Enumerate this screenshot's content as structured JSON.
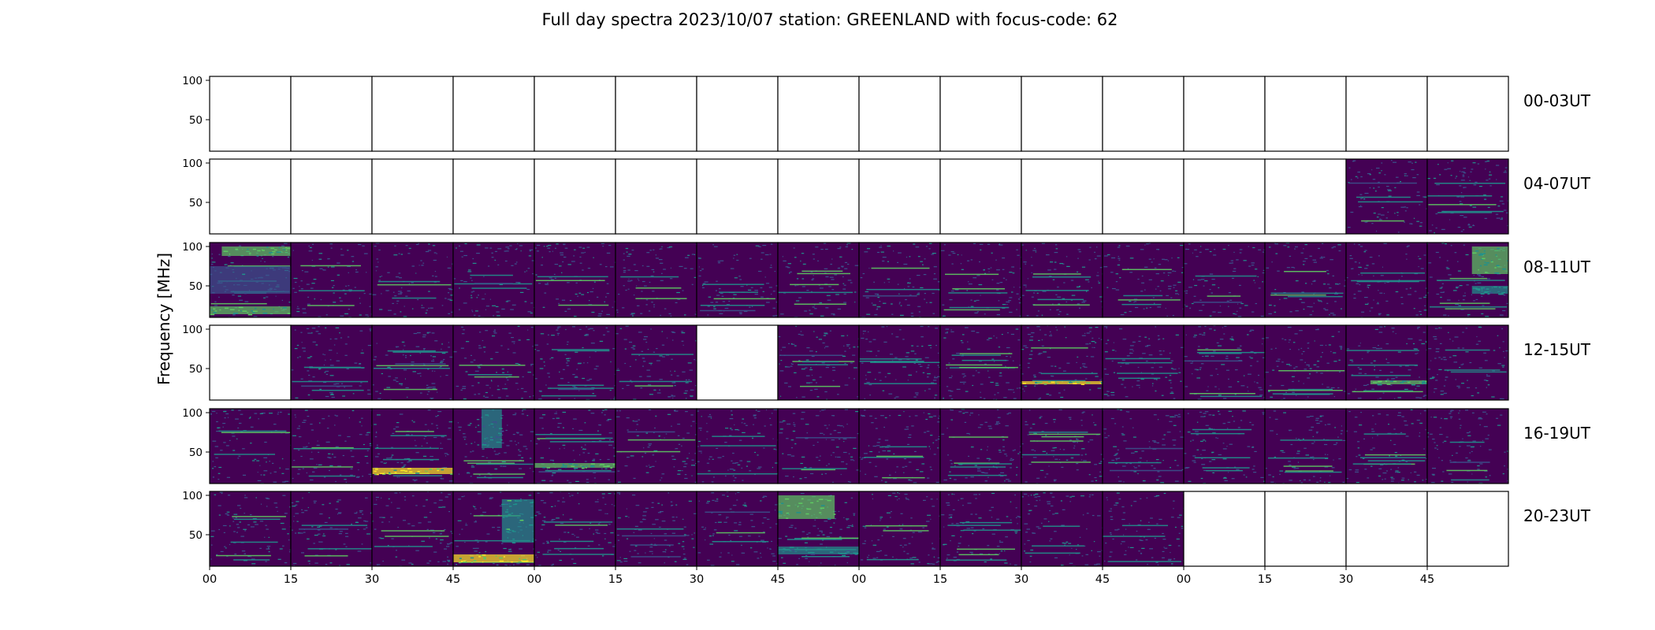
{
  "chart_data": {
    "type": "heatmap",
    "title": "Full day spectra 2023/10/07 station: GREENLAND with focus-code: 62",
    "ylabel": "Frequency [MHz]",
    "ylim": [
      10,
      105
    ],
    "yticks": [
      50,
      100
    ],
    "row_labels": [
      "00-03UT",
      "04-07UT",
      "08-11UT",
      "12-15UT",
      "16-19UT",
      "20-23UT"
    ],
    "x_tick_labels": [
      "00",
      "15",
      "30",
      "45",
      "00",
      "15",
      "30",
      "45",
      "00",
      "15",
      "30",
      "45",
      "00",
      "15",
      "30",
      "45"
    ],
    "panels_per_row": 16,
    "panel_minutes": 15,
    "colormap": [
      "#440154",
      "#3b528b",
      "#21918c",
      "#5ec962",
      "#fde725"
    ],
    "availability": [
      [
        0,
        0,
        0,
        0,
        0,
        0,
        0,
        0,
        0,
        0,
        0,
        0,
        0,
        0,
        0,
        0
      ],
      [
        0,
        0,
        0,
        0,
        0,
        0,
        0,
        0,
        0,
        0,
        0,
        0,
        0,
        0,
        1,
        1
      ],
      [
        1,
        1,
        1,
        1,
        1,
        1,
        1,
        1,
        1,
        1,
        1,
        1,
        1,
        1,
        1,
        1
      ],
      [
        0,
        1,
        1,
        1,
        1,
        1,
        0,
        1,
        1,
        1,
        1,
        1,
        1,
        1,
        1,
        1
      ],
      [
        1,
        1,
        1,
        1,
        1,
        1,
        1,
        1,
        1,
        1,
        1,
        1,
        1,
        1,
        1,
        1
      ],
      [
        1,
        1,
        1,
        1,
        1,
        1,
        1,
        1,
        1,
        1,
        1,
        1,
        0,
        0,
        0,
        0
      ]
    ],
    "features": [
      {
        "row": 2,
        "panel": 0,
        "f0": 88,
        "f1": 100,
        "t0": 0.15,
        "t1": 1.0,
        "level": 0.8
      },
      {
        "row": 2,
        "panel": 0,
        "f0": 14,
        "f1": 24,
        "t0": 0.0,
        "t1": 1.0,
        "level": 0.75
      },
      {
        "row": 2,
        "panel": 0,
        "f0": 40,
        "f1": 75,
        "t0": 0.0,
        "t1": 1.0,
        "level": 0.35
      },
      {
        "row": 2,
        "panel": 15,
        "f0": 65,
        "f1": 100,
        "t0": 0.55,
        "t1": 1.0,
        "level": 0.7
      },
      {
        "row": 2,
        "panel": 15,
        "f0": 40,
        "f1": 50,
        "t0": 0.55,
        "t1": 1.0,
        "level": 0.55
      },
      {
        "row": 3,
        "panel": 6,
        "f0": 20,
        "f1": 26,
        "t0": 0.0,
        "t1": 1.0,
        "level": 0.0
      },
      {
        "row": 3,
        "panel": 10,
        "f0": 30,
        "f1": 34,
        "t0": 0.0,
        "t1": 1.0,
        "level": 0.9
      },
      {
        "row": 3,
        "panel": 14,
        "f0": 30,
        "f1": 35,
        "t0": 0.3,
        "t1": 1.0,
        "level": 0.7
      },
      {
        "row": 4,
        "panel": 2,
        "f0": 22,
        "f1": 30,
        "t0": 0.0,
        "t1": 1.0,
        "level": 0.95
      },
      {
        "row": 4,
        "panel": 3,
        "f0": 55,
        "f1": 105,
        "t0": 0.35,
        "t1": 0.6,
        "level": 0.45
      },
      {
        "row": 4,
        "panel": 4,
        "f0": 30,
        "f1": 36,
        "t0": 0.0,
        "t1": 1.0,
        "level": 0.75
      },
      {
        "row": 5,
        "panel": 3,
        "f0": 40,
        "f1": 95,
        "t0": 0.6,
        "t1": 1.0,
        "level": 0.6
      },
      {
        "row": 5,
        "panel": 3,
        "f0": 15,
        "f1": 25,
        "t0": 0.0,
        "t1": 1.0,
        "level": 1.0
      },
      {
        "row": 5,
        "panel": 7,
        "f0": 70,
        "f1": 100,
        "t0": 0.0,
        "t1": 0.7,
        "level": 0.75
      },
      {
        "row": 5,
        "panel": 7,
        "f0": 25,
        "f1": 35,
        "t0": 0.0,
        "t1": 1.0,
        "level": 0.5
      }
    ]
  }
}
